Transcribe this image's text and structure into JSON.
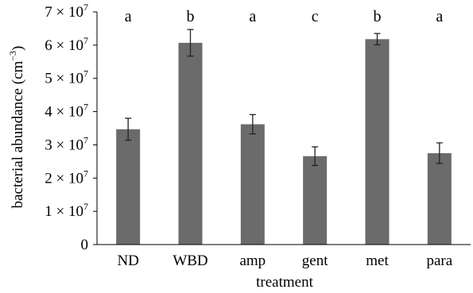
{
  "chart_data": {
    "type": "bar",
    "title": "",
    "xlabel": "treatment",
    "ylabel": {
      "main": "bacterial abundance (cm",
      "exp": "−3",
      "close": ")"
    },
    "categories": [
      "ND",
      "WBD",
      "amp",
      "gent",
      "met",
      "para"
    ],
    "values": [
      34700000,
      60700000,
      36200000,
      26600000,
      61800000,
      27500000
    ],
    "errors": [
      3300000,
      4000000,
      2900000,
      2800000,
      1700000,
      3100000
    ],
    "significance_letters": [
      "a",
      "b",
      "a",
      "c",
      "b",
      "a"
    ],
    "ylim": [
      0,
      70000000
    ],
    "y_ticks": [
      {
        "value": 0,
        "mantissa": "0",
        "times": "",
        "base": "",
        "exp": ""
      },
      {
        "value": 10000000,
        "mantissa": "1",
        "times": " × ",
        "base": "10",
        "exp": "7"
      },
      {
        "value": 20000000,
        "mantissa": "2",
        "times": " × ",
        "base": "10",
        "exp": "7"
      },
      {
        "value": 30000000,
        "mantissa": "3",
        "times": " × ",
        "base": "10",
        "exp": "7"
      },
      {
        "value": 40000000,
        "mantissa": "4",
        "times": " × ",
        "base": "10",
        "exp": "7"
      },
      {
        "value": 50000000,
        "mantissa": "5",
        "times": " × ",
        "base": "10",
        "exp": "7"
      },
      {
        "value": 60000000,
        "mantissa": "6",
        "times": " × ",
        "base": "10",
        "exp": "7"
      },
      {
        "value": 70000000,
        "mantissa": "7",
        "times": " × ",
        "base": "10",
        "exp": "7"
      }
    ],
    "grid": false,
    "legend": "none",
    "bar_color": "#6b6b6b"
  }
}
